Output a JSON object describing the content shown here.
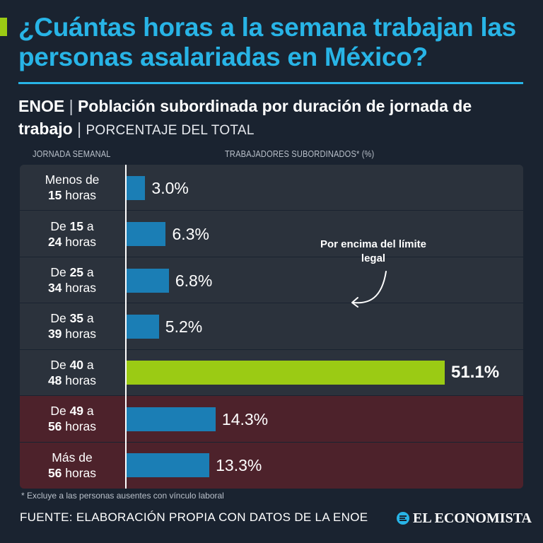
{
  "header": {
    "title": "¿Cuántas horas a la semana trabajan las personas asalariadas en México?",
    "subtitle_source": "ENOE",
    "subtitle_separator": "|",
    "subtitle_main": "Población subordinada por duración de jornada de trabajo",
    "subtitle_unit": "PORCENTAJE DEL TOTAL"
  },
  "columns": {
    "left": "JORNADA SEMANAL",
    "right_main": "TRABAJADORES SUBORDINADOS*",
    "right_unit": "(%)"
  },
  "chart_data": {
    "type": "bar",
    "orientation": "horizontal",
    "title": "Población subordinada por duración de jornada de trabajo",
    "xlabel": "TRABAJADORES SUBORDINADOS* (%)",
    "ylabel": "JORNADA SEMANAL",
    "xlim": [
      0,
      60
    ],
    "categories": [
      {
        "pre": "Menos de",
        "num": "15",
        "post": "horas"
      },
      {
        "pre": "De",
        "num": "15",
        "mid": "a",
        "num2": "24",
        "post": "horas"
      },
      {
        "pre": "De",
        "num": "25",
        "mid": "a",
        "num2": "34",
        "post": "horas"
      },
      {
        "pre": "De",
        "num": "35",
        "mid": "a",
        "num2": "39",
        "post": "horas"
      },
      {
        "pre": "De",
        "num": "40",
        "mid": "a",
        "num2": "48",
        "post": "horas"
      },
      {
        "pre": "De",
        "num": "49",
        "mid": "a",
        "num2": "56",
        "post": "horas"
      },
      {
        "pre": "Más de",
        "num": "56",
        "post": "horas"
      }
    ],
    "values": [
      3.0,
      6.3,
      6.8,
      5.2,
      51.1,
      14.3,
      13.3
    ],
    "value_labels": [
      "3.0%",
      "6.3%",
      "6.8%",
      "5.2%",
      "51.1%",
      "14.3%",
      "13.3%"
    ],
    "highlight_index": 4,
    "above_legal_limit_indices": [
      5,
      6
    ],
    "annotation": "Por encima del límite legal",
    "colors": {
      "bar": "#1b7eb5",
      "highlight": "#9bcb14",
      "row": "#2b323c",
      "row_above_limit": "#4d222b"
    }
  },
  "footnote": "* Excluye a las personas ausentes con vínculo laboral",
  "source": "FUENTE: ELABORACIÓN PROPIA CON DATOS DE LA ENOE",
  "brand": "EL ECONOMISTA",
  "colors": {
    "background": "#1a2330",
    "title": "#28b4e6",
    "accent": "#9bcb14"
  }
}
